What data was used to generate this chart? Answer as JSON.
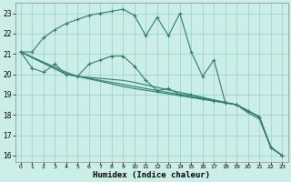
{
  "title": "",
  "xlabel": "Humidex (Indice chaleur)",
  "bg_color": "#cceee8",
  "grid_color": "#99cccc",
  "line_color": "#2e7d6e",
  "xlim": [
    -0.5,
    23.5
  ],
  "ylim": [
    15.7,
    23.5
  ],
  "yticks": [
    16,
    17,
    18,
    19,
    20,
    21,
    22,
    23
  ],
  "xticks": [
    0,
    1,
    2,
    3,
    4,
    5,
    6,
    7,
    8,
    9,
    10,
    11,
    12,
    13,
    14,
    15,
    16,
    17,
    18,
    19,
    20,
    21,
    22,
    23
  ],
  "lines": [
    {
      "x": [
        0,
        1,
        2,
        3,
        4,
        5,
        6,
        7,
        8,
        9,
        10,
        11,
        12,
        13,
        14,
        15,
        16,
        17,
        18,
        19,
        20,
        21,
        22,
        23
      ],
      "y": [
        21.1,
        21.1,
        21.8,
        22.2,
        22.5,
        22.7,
        22.9,
        23.0,
        23.1,
        23.2,
        22.9,
        21.9,
        22.8,
        21.9,
        23.0,
        21.1,
        19.9,
        20.7,
        18.6,
        18.5,
        18.2,
        17.9,
        16.4,
        16.0
      ],
      "marker": true
    },
    {
      "x": [
        0,
        1,
        2,
        3,
        4,
        5,
        6,
        7,
        8,
        9,
        10,
        11,
        12,
        13,
        14,
        15,
        16,
        17,
        18,
        19,
        20,
        21,
        22,
        23
      ],
      "y": [
        21.1,
        20.3,
        20.1,
        20.5,
        20.0,
        19.9,
        20.5,
        20.7,
        20.9,
        20.9,
        20.4,
        19.7,
        19.2,
        19.3,
        19.0,
        19.0,
        18.8,
        18.7,
        18.6,
        18.5,
        18.2,
        17.9,
        16.4,
        16.0
      ],
      "marker": true
    },
    {
      "x": [
        0,
        4,
        5,
        9,
        10,
        19,
        20,
        21,
        22,
        23
      ],
      "y": [
        21.1,
        20.0,
        19.9,
        19.7,
        19.6,
        18.5,
        18.2,
        17.9,
        16.4,
        16.0
      ],
      "marker": false
    },
    {
      "x": [
        0,
        4,
        5,
        9,
        10,
        19,
        20,
        21,
        22,
        23
      ],
      "y": [
        21.1,
        20.0,
        19.9,
        19.5,
        19.4,
        18.5,
        18.2,
        17.9,
        16.4,
        16.0
      ],
      "marker": false
    },
    {
      "x": [
        0,
        4,
        5,
        9,
        10,
        19,
        20,
        21,
        22,
        23
      ],
      "y": [
        21.1,
        20.1,
        19.9,
        19.4,
        19.3,
        18.5,
        18.1,
        17.8,
        16.4,
        16.0
      ],
      "marker": false
    }
  ]
}
